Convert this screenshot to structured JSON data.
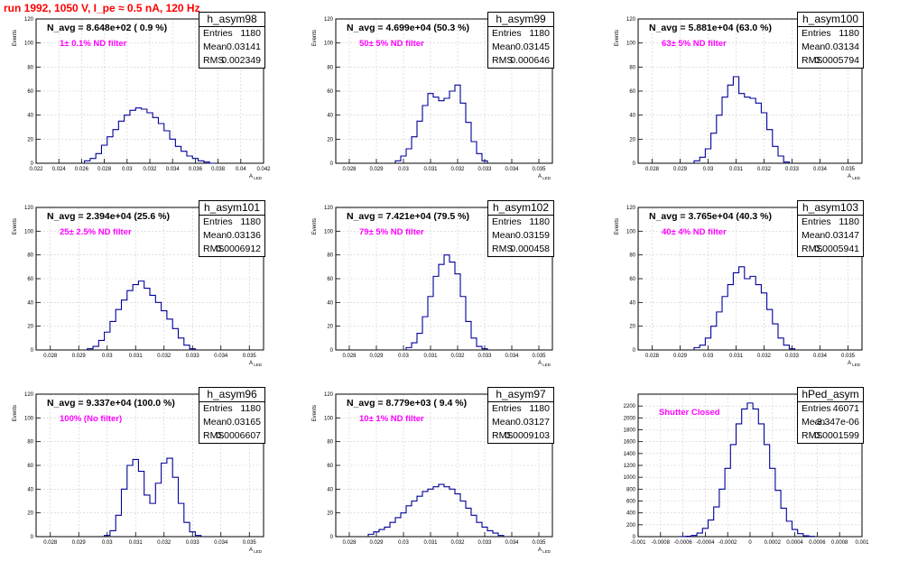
{
  "header": {
    "title": "run 1992,  1050 V, I_pe ≈ 0.5 nA, 120 Hz"
  },
  "colors": {
    "hist_line": "#000099",
    "title_red": "#ff0000",
    "filter_magenta": "#ff00ff",
    "grid": "#cccccc"
  },
  "chart_data": [
    {
      "type": "histogram",
      "name": "h_asym98",
      "navg": "N_avg = 8.648e+02 ( 0.9 %)",
      "filter": "1± 0.1% ND filter",
      "stats": {
        "entries_label": "Entries",
        "entries": "1180",
        "mean_label": "Mean",
        "mean": "0.03141",
        "rms_label": "RMS",
        "rms": "0.002349"
      },
      "ylabel": "Events",
      "xlabel": "A_LED",
      "xlim": [
        0.022,
        0.042
      ],
      "ylim": [
        0,
        120
      ],
      "xticks": [
        0.022,
        0.024,
        0.026,
        0.028,
        0.03,
        0.032,
        0.034,
        0.036,
        0.038,
        0.04,
        0.042
      ],
      "xtick_labels": [
        "0.022",
        "0.024",
        "0.026",
        "0.028",
        "0.03",
        "0.032",
        "0.034",
        "0.036",
        "0.038",
        "0.04",
        "0.042"
      ],
      "yticks": [
        0,
        20,
        40,
        60,
        80,
        100,
        120
      ],
      "x": [
        0.0265,
        0.027,
        0.0275,
        0.028,
        0.0285,
        0.029,
        0.0295,
        0.03,
        0.0305,
        0.031,
        0.0315,
        0.032,
        0.0325,
        0.033,
        0.0335,
        0.034,
        0.0345,
        0.035,
        0.0355,
        0.036,
        0.0365,
        0.037,
        0.0375
      ],
      "values": [
        2,
        4,
        8,
        15,
        22,
        28,
        35,
        40,
        44,
        46,
        45,
        42,
        38,
        33,
        27,
        20,
        14,
        10,
        6,
        4,
        2,
        1,
        0
      ]
    },
    {
      "type": "histogram",
      "name": "h_asym99",
      "navg": "N_avg = 4.699e+04 (50.3 %)",
      "filter": "50± 5% ND filter",
      "stats": {
        "entries_label": "Entries",
        "entries": "1180",
        "mean_label": "Mean",
        "mean": "0.03145",
        "rms_label": "RMS",
        "rms": "0.000646"
      },
      "ylabel": "Events",
      "xlabel": "A_LED",
      "xlim": [
        0.0275,
        0.0355
      ],
      "ylim": [
        0,
        120
      ],
      "xticks": [
        0.028,
        0.029,
        0.03,
        0.031,
        0.032,
        0.033,
        0.034,
        0.035
      ],
      "xtick_labels": [
        "0.028",
        "0.029",
        "0.03",
        "0.031",
        "0.032",
        "0.033",
        "0.034",
        "0.035"
      ],
      "yticks": [
        0,
        20,
        40,
        60,
        80,
        100,
        120
      ],
      "x": [
        0.0298,
        0.03,
        0.0302,
        0.0304,
        0.0306,
        0.0308,
        0.031,
        0.0312,
        0.0314,
        0.0316,
        0.0318,
        0.032,
        0.0322,
        0.0324,
        0.0326,
        0.0328,
        0.033
      ],
      "values": [
        2,
        6,
        12,
        22,
        35,
        48,
        58,
        55,
        52,
        54,
        60,
        65,
        50,
        34,
        18,
        8,
        2
      ]
    },
    {
      "type": "histogram",
      "name": "h_asym100",
      "navg": "N_avg = 5.881e+04 (63.0 %)",
      "filter": "63± 5% ND filter",
      "stats": {
        "entries_label": "Entries",
        "entries": "1180",
        "mean_label": "Mean",
        "mean": "0.03134",
        "rms_label": "RMS",
        "rms": "0.0005794"
      },
      "ylabel": "Events",
      "xlabel": "A_LED",
      "xlim": [
        0.0275,
        0.0355
      ],
      "ylim": [
        0,
        120
      ],
      "xticks": [
        0.028,
        0.029,
        0.03,
        0.031,
        0.032,
        0.033,
        0.034,
        0.035
      ],
      "xtick_labels": [
        "0.028",
        "0.029",
        "0.03",
        "0.031",
        "0.032",
        "0.033",
        "0.034",
        "0.035"
      ],
      "yticks": [
        0,
        20,
        40,
        60,
        80,
        100,
        120
      ],
      "x": [
        0.0296,
        0.0298,
        0.03,
        0.0302,
        0.0304,
        0.0306,
        0.0308,
        0.031,
        0.0312,
        0.0314,
        0.0316,
        0.0318,
        0.032,
        0.0322,
        0.0324,
        0.0326,
        0.0328
      ],
      "values": [
        2,
        5,
        12,
        25,
        40,
        55,
        65,
        72,
        58,
        55,
        54,
        50,
        42,
        28,
        14,
        6,
        1
      ]
    },
    {
      "type": "histogram",
      "name": "h_asym101",
      "navg": "N_avg = 2.394e+04 (25.6 %)",
      "filter": "25± 2.5% ND filter",
      "stats": {
        "entries_label": "Entries",
        "entries": "1180",
        "mean_label": "Mean",
        "mean": "0.03136",
        "rms_label": "RMS",
        "rms": "0.0006912"
      },
      "ylabel": "Events",
      "xlabel": "A_LED",
      "xlim": [
        0.0275,
        0.0355
      ],
      "ylim": [
        0,
        120
      ],
      "xticks": [
        0.028,
        0.029,
        0.03,
        0.031,
        0.032,
        0.033,
        0.034,
        0.035
      ],
      "xtick_labels": [
        "0.028",
        "0.029",
        "0.03",
        "0.031",
        "0.032",
        "0.033",
        "0.034",
        "0.035"
      ],
      "yticks": [
        0,
        20,
        40,
        60,
        80,
        100,
        120
      ],
      "x": [
        0.0294,
        0.0296,
        0.0298,
        0.03,
        0.0302,
        0.0304,
        0.0306,
        0.0308,
        0.031,
        0.0312,
        0.0314,
        0.0316,
        0.0318,
        0.032,
        0.0322,
        0.0324,
        0.0326,
        0.0328,
        0.033
      ],
      "values": [
        1,
        3,
        8,
        15,
        24,
        34,
        42,
        50,
        55,
        58,
        52,
        46,
        40,
        33,
        26,
        18,
        10,
        4,
        1
      ]
    },
    {
      "type": "histogram",
      "name": "h_asym102",
      "navg": "N_avg = 7.421e+04 (79.5 %)",
      "filter": "79± 5% ND filter",
      "stats": {
        "entries_label": "Entries",
        "entries": "1180",
        "mean_label": "Mean",
        "mean": "0.03159",
        "rms_label": "RMS",
        "rms": "0.000458"
      },
      "ylabel": "Events",
      "xlabel": "A_LED",
      "xlim": [
        0.0275,
        0.0355
      ],
      "ylim": [
        0,
        120
      ],
      "xticks": [
        0.028,
        0.029,
        0.03,
        0.031,
        0.032,
        0.033,
        0.034,
        0.035
      ],
      "xtick_labels": [
        "0.028",
        "0.029",
        "0.03",
        "0.031",
        "0.032",
        "0.033",
        "0.034",
        "0.035"
      ],
      "yticks": [
        0,
        20,
        40,
        60,
        80,
        100,
        120
      ],
      "x": [
        0.0302,
        0.0304,
        0.0306,
        0.0308,
        0.031,
        0.0312,
        0.0314,
        0.0316,
        0.0318,
        0.032,
        0.0322,
        0.0324,
        0.0326,
        0.0328,
        0.033
      ],
      "values": [
        2,
        6,
        14,
        28,
        45,
        62,
        72,
        80,
        74,
        64,
        45,
        24,
        10,
        3,
        1
      ]
    },
    {
      "type": "histogram",
      "name": "h_asym103",
      "navg": "N_avg = 3.765e+04 (40.3 %)",
      "filter": "40± 4% ND filter",
      "stats": {
        "entries_label": "Entries",
        "entries": "1180",
        "mean_label": "Mean",
        "mean": "0.03147",
        "rms_label": "RMS",
        "rms": "0.0005941"
      },
      "ylabel": "Events",
      "xlabel": "A_LED",
      "xlim": [
        0.0275,
        0.0355
      ],
      "ylim": [
        0,
        120
      ],
      "xticks": [
        0.028,
        0.029,
        0.03,
        0.031,
        0.032,
        0.033,
        0.034,
        0.035
      ],
      "xtick_labels": [
        "0.028",
        "0.029",
        "0.03",
        "0.031",
        "0.032",
        "0.033",
        "0.034",
        "0.035"
      ],
      "yticks": [
        0,
        20,
        40,
        60,
        80,
        100,
        120
      ],
      "x": [
        0.0296,
        0.0298,
        0.03,
        0.0302,
        0.0304,
        0.0306,
        0.0308,
        0.031,
        0.0312,
        0.0314,
        0.0316,
        0.0318,
        0.032,
        0.0322,
        0.0324,
        0.0326,
        0.0328,
        0.033
      ],
      "values": [
        2,
        4,
        10,
        20,
        32,
        45,
        55,
        65,
        70,
        60,
        62,
        55,
        48,
        34,
        22,
        10,
        4,
        1
      ]
    },
    {
      "type": "histogram",
      "name": "h_asym96",
      "navg": "N_avg = 9.337e+04 (100.0 %)",
      "filter": "100% (No filter)",
      "stats": {
        "entries_label": "Entries",
        "entries": "1180",
        "mean_label": "Mean",
        "mean": "0.03165",
        "rms_label": "RMS",
        "rms": "0.0006607"
      },
      "ylabel": "Events",
      "xlabel": "A_LED",
      "xlim": [
        0.0275,
        0.0355
      ],
      "ylim": [
        0,
        120
      ],
      "xticks": [
        0.028,
        0.029,
        0.03,
        0.031,
        0.032,
        0.033,
        0.034,
        0.035
      ],
      "xtick_labels": [
        "0.028",
        "0.029",
        "0.03",
        "0.031",
        "0.032",
        "0.033",
        "0.034",
        "0.035"
      ],
      "yticks": [
        0,
        20,
        40,
        60,
        80,
        100,
        120
      ],
      "x": [
        0.03,
        0.0302,
        0.0304,
        0.0306,
        0.0308,
        0.031,
        0.0312,
        0.0314,
        0.0316,
        0.0318,
        0.032,
        0.0322,
        0.0324,
        0.0326,
        0.0328,
        0.033,
        0.0332
      ],
      "values": [
        1,
        5,
        18,
        40,
        60,
        65,
        55,
        35,
        28,
        45,
        62,
        66,
        50,
        28,
        12,
        4,
        1
      ]
    },
    {
      "type": "histogram",
      "name": "h_asym97",
      "navg": "N_avg = 8.779e+03 ( 9.4 %)",
      "filter": "10± 1% ND filter",
      "stats": {
        "entries_label": "Entries",
        "entries": "1180",
        "mean_label": "Mean",
        "mean": "0.03127",
        "rms_label": "RMS",
        "rms": "0.0009103"
      },
      "ylabel": "Events",
      "xlabel": "A_LED",
      "xlim": [
        0.0275,
        0.0355
      ],
      "ylim": [
        0,
        120
      ],
      "xticks": [
        0.028,
        0.029,
        0.03,
        0.031,
        0.032,
        0.033,
        0.034,
        0.035
      ],
      "xtick_labels": [
        "0.028",
        "0.029",
        "0.03",
        "0.031",
        "0.032",
        "0.033",
        "0.034",
        "0.035"
      ],
      "yticks": [
        0,
        20,
        40,
        60,
        80,
        100,
        120
      ],
      "x": [
        0.0288,
        0.029,
        0.0292,
        0.0294,
        0.0296,
        0.0298,
        0.03,
        0.0302,
        0.0304,
        0.0306,
        0.0308,
        0.031,
        0.0312,
        0.0314,
        0.0316,
        0.0318,
        0.032,
        0.0322,
        0.0324,
        0.0326,
        0.0328,
        0.033,
        0.0332,
        0.0334,
        0.0336
      ],
      "values": [
        2,
        4,
        6,
        8,
        12,
        16,
        20,
        26,
        30,
        34,
        38,
        40,
        42,
        44,
        42,
        40,
        36,
        30,
        24,
        18,
        12,
        8,
        5,
        3,
        1
      ]
    },
    {
      "type": "histogram",
      "name": "hPed_asym",
      "navg": "",
      "filter": "Shutter Closed",
      "stats": {
        "entries_label": "Entries",
        "entries": "46071",
        "mean_label": "Mean",
        "mean": "-3.347e-06",
        "rms_label": "RMS",
        "rms": "0.0001599"
      },
      "ylabel": "",
      "xlabel": "",
      "xlim": [
        -0.001,
        0.001
      ],
      "ylim": [
        0,
        2400
      ],
      "xticks": [
        -0.001,
        -0.0008,
        -0.0006,
        -0.0004,
        -0.0002,
        0,
        0.0002,
        0.0004,
        0.0006,
        0.0008,
        0.001
      ],
      "xtick_labels": [
        "-0.001",
        "-0.0008",
        "-0.0006",
        "-0.0004",
        "-0.0002",
        "0",
        "0.0002",
        "0.0004",
        "0.0006",
        "0.0008",
        "0.001"
      ],
      "yticks": [
        0,
        200,
        400,
        600,
        800,
        1000,
        1200,
        1400,
        1600,
        1800,
        2000,
        2200
      ],
      "x": [
        -0.0006,
        -0.00055,
        -0.0005,
        -0.00045,
        -0.0004,
        -0.00035,
        -0.0003,
        -0.00025,
        -0.0002,
        -0.00015,
        -0.0001,
        -5e-05,
        0,
        5e-05,
        0.0001,
        0.00015,
        0.0002,
        0.00025,
        0.0003,
        0.00035,
        0.0004,
        0.00045,
        0.0005,
        0.00055
      ],
      "values": [
        2,
        6,
        20,
        60,
        140,
        280,
        500,
        800,
        1150,
        1550,
        1900,
        2150,
        2250,
        2150,
        1900,
        1550,
        1150,
        780,
        480,
        260,
        120,
        50,
        15,
        4
      ]
    }
  ]
}
